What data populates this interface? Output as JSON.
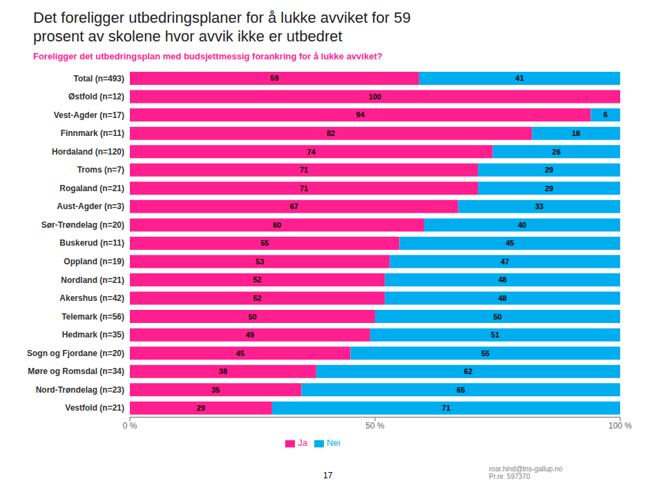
{
  "chart_data": {
    "type": "bar",
    "orientation": "horizontal",
    "stacked": true,
    "title": "Det foreligger utbedringsplaner for å lukke avviket for 59\nprosent av skolene hvor avvik ikke er utbedret",
    "subtitle": "Foreligger det utbedringsplan med budsjettmessig forankring for å lukke avviket?",
    "categories": [
      "Total (n=493)",
      "Østfold (n=12)",
      "Vest-Agder (n=17)",
      "Finnmark (n=11)",
      "Hordaland (n=120)",
      "Troms (n=7)",
      "Rogaland (n=21)",
      "Aust-Agder (n=3)",
      "Sør-Trøndelag (n=20)",
      "Buskerud (n=11)",
      "Oppland (n=19)",
      "Nordland (n=21)",
      "Akershus (n=42)",
      "Telemark (n=56)",
      "Hedmark (n=35)",
      "Sogn og Fjordane (n=20)",
      "Møre og Romsdal (n=34)",
      "Nord-Trøndelag (n=23)",
      "Vestfold (n=21)"
    ],
    "series": [
      {
        "name": "Ja",
        "color": "#FF1F8E",
        "values": [
          59,
          100,
          94,
          82,
          74,
          71,
          71,
          67,
          60,
          55,
          53,
          52,
          52,
          50,
          49,
          45,
          38,
          35,
          29
        ]
      },
      {
        "name": "Nei",
        "color": "#00ADEF",
        "values": [
          41,
          0,
          6,
          18,
          26,
          29,
          29,
          33,
          40,
          45,
          47,
          48,
          48,
          50,
          51,
          55,
          62,
          65,
          71
        ]
      }
    ],
    "xlim": [
      0,
      100
    ],
    "xticks": [
      {
        "value": 0,
        "label": "0 %"
      },
      {
        "value": 50,
        "label": "50 %"
      },
      {
        "value": 100,
        "label": "100 %"
      }
    ],
    "data_labels": true,
    "legend": "bottom",
    "grid": false,
    "annotations": [
      "roar.hind@tns-gallup.no\nPr.nr. 597370",
      "17"
    ]
  }
}
